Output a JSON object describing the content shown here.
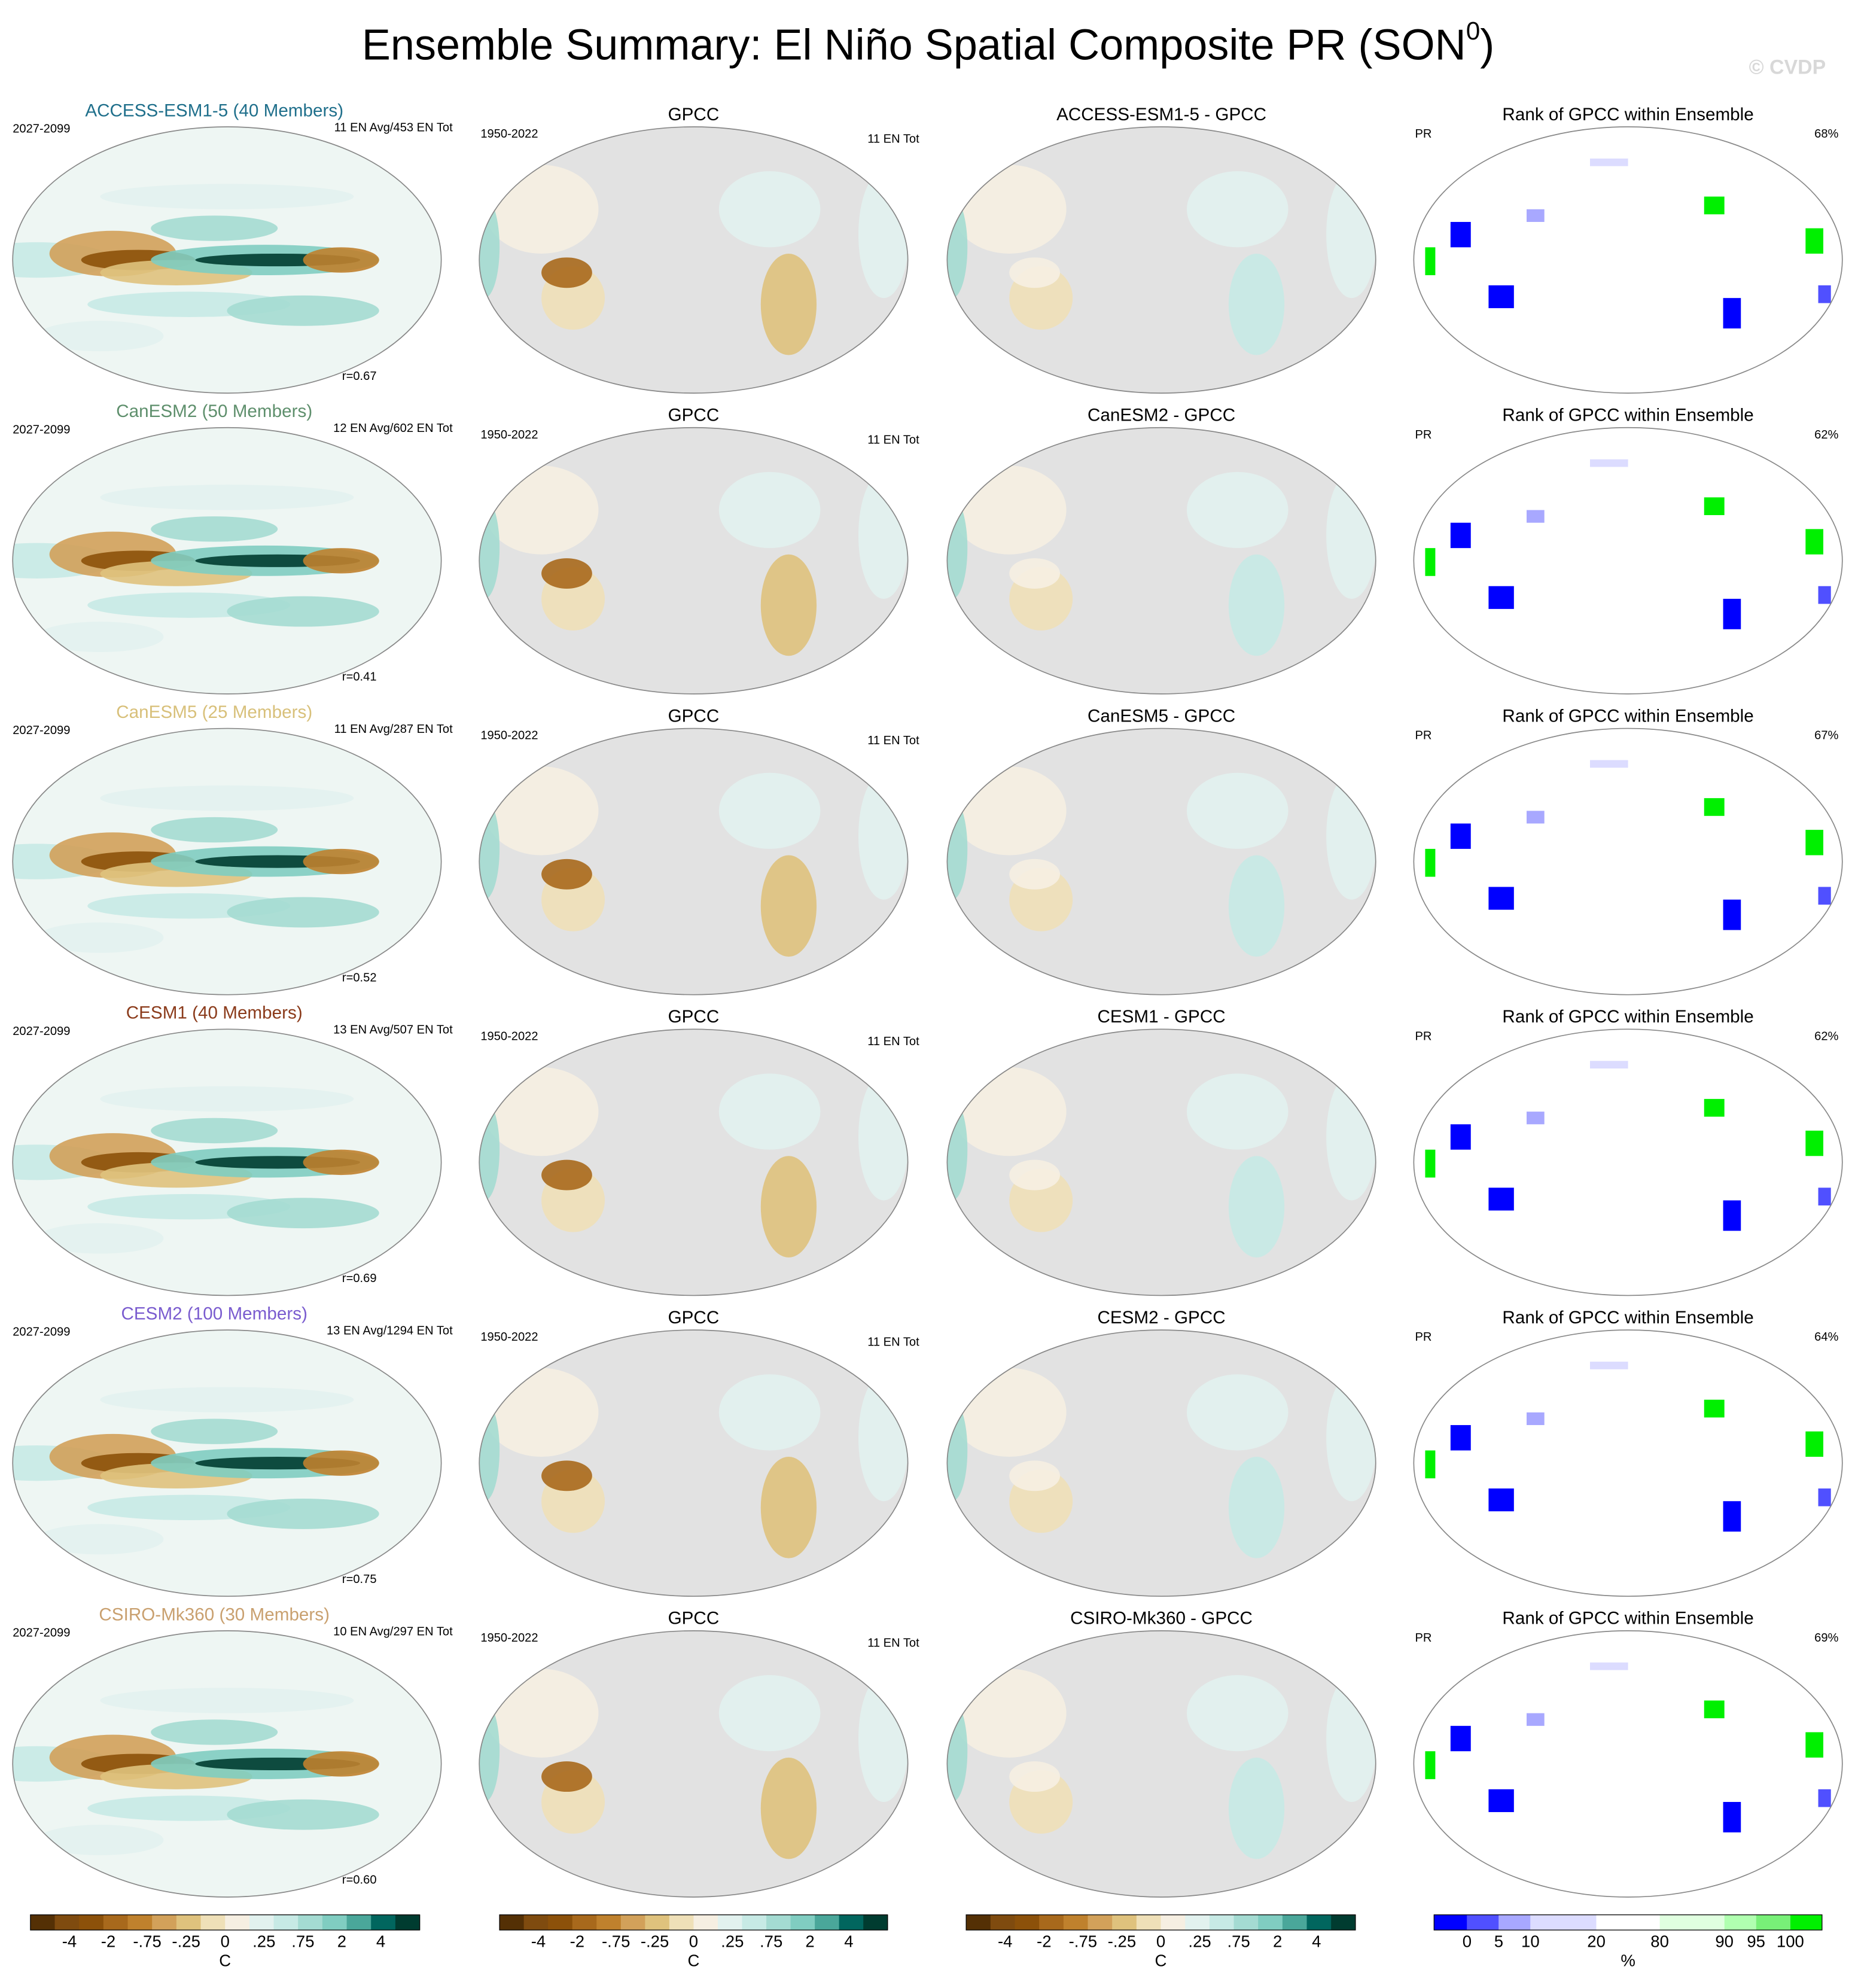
{
  "title": "Ensemble Summary: El Niño Spatial Composite PR (SON",
  "title_sup": "0",
  "title_end": ")",
  "watermark": "© CVDP",
  "rows": [
    {
      "model": "ACCESS-ESM1-5 (40 Members)",
      "model_color": "#1f6f8b",
      "period": "2027-2099",
      "counts": "11 EN Avg/453 EN Tot",
      "r": "r=0.67",
      "obs_title": "GPCC",
      "obs_period": "1950-2022",
      "obs_counts": "11 EN Tot",
      "diff_title": "ACCESS-ESM1-5 - GPCC",
      "rank_title": "Rank of GPCC within Ensemble",
      "rank_var": "PR",
      "rank_pct": "68%"
    },
    {
      "model": "CanESM2 (50 Members)",
      "model_color": "#5e8f6c",
      "period": "2027-2099",
      "counts": "12 EN Avg/602 EN Tot",
      "r": "r=0.41",
      "obs_title": "GPCC",
      "obs_period": "1950-2022",
      "obs_counts": "11 EN Tot",
      "diff_title": "CanESM2 - GPCC",
      "rank_title": "Rank of GPCC within Ensemble",
      "rank_var": "PR",
      "rank_pct": "62%"
    },
    {
      "model": "CanESM5 (25 Members)",
      "model_color": "#d8c07a",
      "period": "2027-2099",
      "counts": "11 EN Avg/287 EN Tot",
      "r": "r=0.52",
      "obs_title": "GPCC",
      "obs_period": "1950-2022",
      "obs_counts": "11 EN Tot",
      "diff_title": "CanESM5 - GPCC",
      "rank_title": "Rank of GPCC within Ensemble",
      "rank_var": "PR",
      "rank_pct": "67%"
    },
    {
      "model": "CESM1 (40 Members)",
      "model_color": "#8b3b1b",
      "period": "2027-2099",
      "counts": "13 EN Avg/507 EN Tot",
      "r": "r=0.69",
      "obs_title": "GPCC",
      "obs_period": "1950-2022",
      "obs_counts": "11 EN Tot",
      "diff_title": "CESM1 - GPCC",
      "rank_title": "Rank of GPCC within Ensemble",
      "rank_var": "PR",
      "rank_pct": "62%"
    },
    {
      "model": "CESM2 (100 Members)",
      "model_color": "#7a5ccf",
      "period": "2027-2099",
      "counts": "13 EN Avg/1294 EN Tot",
      "r": "r=0.75",
      "obs_title": "GPCC",
      "obs_period": "1950-2022",
      "obs_counts": "11 EN Tot",
      "diff_title": "CESM2 - GPCC",
      "rank_title": "Rank of GPCC within Ensemble",
      "rank_var": "PR",
      "rank_pct": "64%"
    },
    {
      "model": "CSIRO-Mk360 (30 Members)",
      "model_color": "#c9a06f",
      "period": "2027-2099",
      "counts": "10 EN Avg/297 EN Tot",
      "r": "r=0.60",
      "obs_title": "GPCC",
      "obs_period": "1950-2022",
      "obs_counts": "11 EN Tot",
      "diff_title": "CSIRO-Mk360 - GPCC",
      "rank_title": "Rank of GPCC within Ensemble",
      "rank_var": "PR",
      "rank_pct": "69%"
    }
  ],
  "colorbar": {
    "colors": [
      "#543005",
      "#7f4b0f",
      "#8c510a",
      "#a8691c",
      "#bf812d",
      "#d2a15a",
      "#dfc27d",
      "#efe0b8",
      "#f6efe2",
      "#e2f2ef",
      "#c7eae5",
      "#a4dbd2",
      "#80cdc1",
      "#4aa79a",
      "#01665e",
      "#003c30"
    ],
    "labels": [
      "-4",
      "-2",
      "-.75",
      "-.25",
      "0",
      ".25",
      ".75",
      "2",
      "4"
    ],
    "unit": "C"
  },
  "rank_colorbar": {
    "colors": [
      "#0000ff",
      "#5050ff",
      "#a8a8ff",
      "#dcdcff",
      "#ffffff",
      "#e0ffe0",
      "#b0ffb0",
      "#78f078",
      "#00f000"
    ],
    "labels": [
      "0",
      "5",
      "10",
      "20",
      "80",
      "90",
      "95",
      "100"
    ],
    "unit": "%"
  }
}
